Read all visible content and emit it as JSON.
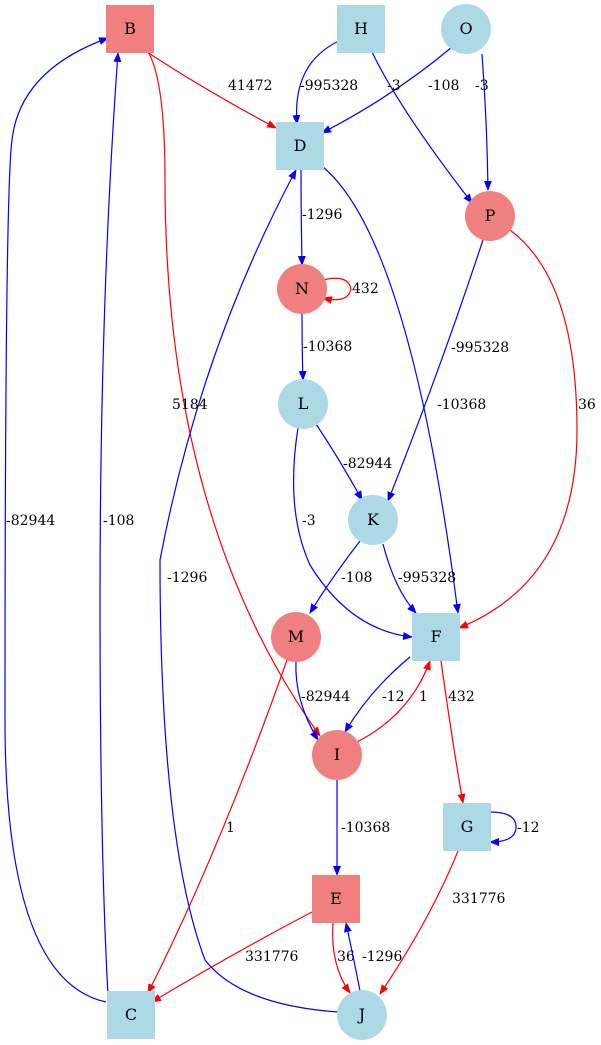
{
  "colors": {
    "red": "#f08080",
    "blue": "#add8e6",
    "edge_red": "#ff0000",
    "edge_blue": "#0000ff"
  },
  "nodes": [
    {
      "id": "B",
      "label": "B",
      "shape": "box",
      "fill": "red"
    },
    {
      "id": "H",
      "label": "H",
      "shape": "box",
      "fill": "blue"
    },
    {
      "id": "O",
      "label": "O",
      "shape": "circle",
      "fill": "blue"
    },
    {
      "id": "D",
      "label": "D",
      "shape": "box",
      "fill": "blue"
    },
    {
      "id": "P",
      "label": "P",
      "shape": "circle",
      "fill": "red"
    },
    {
      "id": "N",
      "label": "N",
      "shape": "circle",
      "fill": "red"
    },
    {
      "id": "L",
      "label": "L",
      "shape": "circle",
      "fill": "blue"
    },
    {
      "id": "K",
      "label": "K",
      "shape": "circle",
      "fill": "blue"
    },
    {
      "id": "M",
      "label": "M",
      "shape": "circle",
      "fill": "red"
    },
    {
      "id": "F",
      "label": "F",
      "shape": "box",
      "fill": "blue"
    },
    {
      "id": "I",
      "label": "I",
      "shape": "circle",
      "fill": "red"
    },
    {
      "id": "G",
      "label": "G",
      "shape": "box",
      "fill": "blue"
    },
    {
      "id": "E",
      "label": "E",
      "shape": "box",
      "fill": "red"
    },
    {
      "id": "C",
      "label": "C",
      "shape": "box",
      "fill": "blue"
    },
    {
      "id": "J",
      "label": "J",
      "shape": "circle",
      "fill": "blue"
    }
  ],
  "edges": [
    {
      "from": "B",
      "to": "D",
      "label": "41472",
      "color": "red"
    },
    {
      "from": "H",
      "to": "D",
      "label": "-995328",
      "color": "blue"
    },
    {
      "from": "O",
      "to": "D",
      "label": "-108",
      "color": "blue"
    },
    {
      "from": "H",
      "to": "P",
      "label": "-3",
      "color": "blue"
    },
    {
      "from": "O",
      "to": "P",
      "label": "-3",
      "color": "blue"
    },
    {
      "from": "D",
      "to": "N",
      "label": "-1296",
      "color": "blue"
    },
    {
      "from": "N",
      "to": "N",
      "label": "432",
      "color": "red"
    },
    {
      "from": "N",
      "to": "L",
      "label": "-10368",
      "color": "blue"
    },
    {
      "from": "P",
      "to": "K",
      "label": "-995328",
      "color": "blue"
    },
    {
      "from": "D",
      "to": "F",
      "label": "-10368",
      "color": "blue"
    },
    {
      "from": "P",
      "to": "F",
      "label": "36",
      "color": "red"
    },
    {
      "from": "B",
      "to": "I",
      "label": "5184",
      "color": "red"
    },
    {
      "from": "L",
      "to": "K",
      "label": "-82944",
      "color": "blue"
    },
    {
      "from": "L",
      "to": "F",
      "label": "-3",
      "color": "blue"
    },
    {
      "from": "K",
      "to": "M",
      "label": "-108",
      "color": "blue"
    },
    {
      "from": "K",
      "to": "F",
      "label": "-995328",
      "color": "blue"
    },
    {
      "from": "M",
      "to": "I",
      "label": "-82944",
      "color": "blue"
    },
    {
      "from": "F",
      "to": "I",
      "label": "-12",
      "color": "blue"
    },
    {
      "from": "I",
      "to": "F",
      "label": "1",
      "color": "red"
    },
    {
      "from": "F",
      "to": "G",
      "label": "432",
      "color": "red"
    },
    {
      "from": "G",
      "to": "G",
      "label": "-12",
      "color": "blue"
    },
    {
      "from": "I",
      "to": "E",
      "label": "-10368",
      "color": "blue"
    },
    {
      "from": "M",
      "to": "C",
      "label": "1",
      "color": "red"
    },
    {
      "from": "G",
      "to": "J",
      "label": "331776",
      "color": "red"
    },
    {
      "from": "E",
      "to": "C",
      "label": "331776",
      "color": "red"
    },
    {
      "from": "E",
      "to": "J",
      "label": "36",
      "color": "red"
    },
    {
      "from": "J",
      "to": "E",
      "label": "-1296",
      "color": "blue"
    },
    {
      "from": "C",
      "to": "B",
      "label": "-82944",
      "color": "blue"
    },
    {
      "from": "C",
      "to": "B",
      "label": "-108",
      "color": "blue"
    },
    {
      "from": "J",
      "to": "D",
      "label": "-1296",
      "color": "blue"
    }
  ]
}
